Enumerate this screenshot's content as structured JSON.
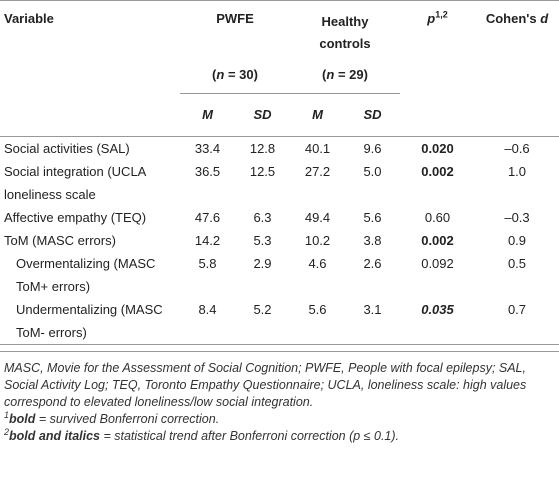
{
  "header": {
    "variable": "Variable",
    "pwfe": "PWFE",
    "pwfe_n": [
      "(",
      "n",
      " = 30)"
    ],
    "hc": "Healthy controls",
    "hc_n": [
      "(",
      "n",
      " = 29)"
    ],
    "p": [
      "p",
      "1,2"
    ],
    "d": [
      "Cohen's ",
      "d"
    ],
    "sub": [
      "M",
      "SD",
      "M",
      "SD"
    ]
  },
  "rows": [
    [
      "Social activities (SAL)",
      "33.4",
      "12.8",
      "40.1",
      "9.6",
      "0.020",
      "–0.6"
    ],
    [
      "Social integration (UCLA loneliness scale",
      "36.5",
      "12.5",
      "27.2",
      "5.0",
      "0.002",
      "1.0"
    ],
    [
      "Affective empathy (TEQ)",
      "47.6",
      "6.3",
      "49.4",
      "5.6",
      "0.60",
      "–0.3"
    ],
    [
      "ToM (MASC errors)",
      "14.2",
      "5.3",
      "10.2",
      "3.8",
      "0.002",
      "0.9"
    ],
    [
      "Overmentalizing (MASC ToM+ errors)",
      "5.8",
      "2.9",
      "4.6",
      "2.6",
      "0.092",
      "0.5"
    ],
    [
      "Undermentalizing (MASC ToM- errors)",
      "8.4",
      "5.2",
      "5.6",
      "3.1",
      "0.035",
      "0.7"
    ]
  ],
  "notes": {
    "abbreviations": "MASC, Movie for the Assessment of Social Cognition; PWFE, People with focal epilepsy; SAL, Social Activity Log; TEQ, Toronto Empathy Questionnaire; UCLA, loneliness scale: high values correspond to elevated loneliness/low social integration.",
    "note1": [
      "1",
      "bold",
      " = survived Bonferroni correction."
    ],
    "note2": [
      "2",
      "bold and italics",
      " = statistical trend after Bonferroni correction (p ≤ 0.1)."
    ]
  }
}
